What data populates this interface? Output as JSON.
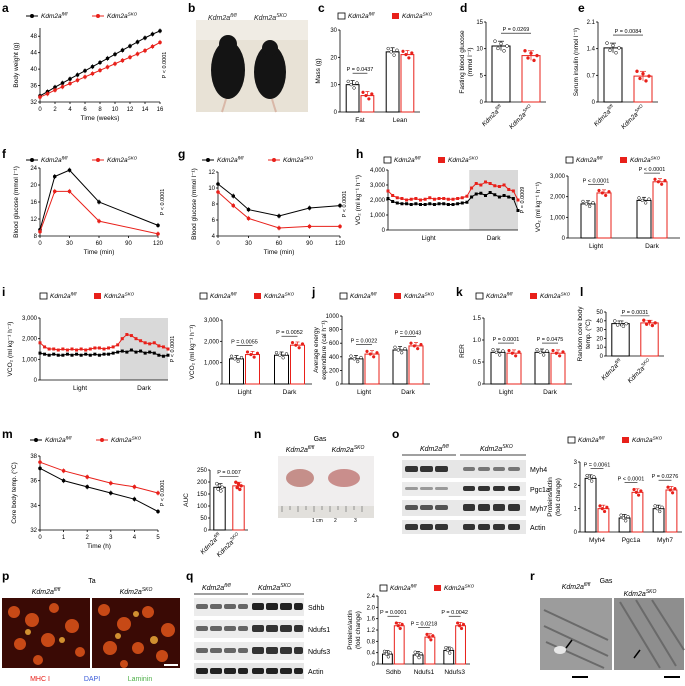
{
  "figure": {
    "colors": {
      "fl": "#000000",
      "sko": "#e8201a",
      "gray": "#d9d9d9"
    },
    "legend": {
      "fl": "Kdm2a",
      "fl_sup": "fl/fl",
      "sko": "Kdm2a",
      "sko_sup": "SKO"
    },
    "panel_labels": [
      "a",
      "b",
      "c",
      "d",
      "e",
      "f",
      "g",
      "h",
      "i",
      "j",
      "k",
      "l",
      "m",
      "n",
      "o",
      "p",
      "q",
      "r"
    ]
  },
  "chart_data": [
    {
      "id": "a",
      "type": "line",
      "xlabel": "Time (weeks)",
      "ylabel": "Body weight (g)",
      "ylim": [
        32,
        50
      ],
      "yticks": [
        32,
        36,
        40,
        44,
        48
      ],
      "xticks": [
        0,
        2,
        4,
        6,
        8,
        10,
        12,
        14,
        16
      ],
      "pvalue": "P < 0.0001",
      "x": [
        0,
        1,
        2,
        3,
        4,
        5,
        6,
        7,
        8,
        9,
        10,
        11,
        12,
        13,
        14,
        15,
        16
      ],
      "series": [
        {
          "name": "Kdm2a fl/fl",
          "values": [
            33.5,
            34.5,
            35.6,
            36.6,
            37.6,
            38.6,
            39.6,
            40.6,
            41.6,
            42.6,
            43.6,
            44.6,
            45.6,
            46.6,
            47.6,
            48.5,
            49.3
          ]
        },
        {
          "name": "Kdm2a SKO",
          "values": [
            33.2,
            34.0,
            34.9,
            35.7,
            36.5,
            37.3,
            38.1,
            38.9,
            39.7,
            40.5,
            41.3,
            42.1,
            42.9,
            43.7,
            44.5,
            45.5,
            46.5
          ]
        }
      ]
    },
    {
      "id": "c",
      "type": "bar",
      "ylabel": "Mass (g)",
      "ylim": [
        0,
        30
      ],
      "yticks": [
        0,
        10,
        20,
        30
      ],
      "categories": [
        "Fat",
        "Lean"
      ],
      "series": [
        {
          "name": "Kdm2a fl/fl",
          "values": [
            10,
            22
          ]
        },
        {
          "name": "Kdm2a SKO",
          "values": [
            6,
            21
          ]
        }
      ],
      "pvalues": [
        "P = 0.0437"
      ]
    },
    {
      "id": "d",
      "type": "bar",
      "ylabel": "Fasting blood glucose",
      "ylabel2": "(mmol l⁻¹)",
      "ylim": [
        0,
        15
      ],
      "yticks": [
        0,
        5,
        10,
        15
      ],
      "categories": [
        "Kdm2a fl/fl",
        "Kdm2a SKO"
      ],
      "values": [
        10.5,
        8.7
      ],
      "pvalues": [
        "P = 0.0269"
      ]
    },
    {
      "id": "e",
      "type": "bar",
      "ylabel": "Serum insulin (nmol l⁻¹)",
      "ylim": [
        0,
        2.1
      ],
      "yticks": [
        0,
        0.7,
        1.4,
        2.1
      ],
      "yticklabels": [
        "0",
        "0.7",
        "1.4",
        "2.1"
      ],
      "categories": [
        "Kdm2a fl/fl",
        "Kdm2a SKO"
      ],
      "values": [
        1.42,
        0.68
      ],
      "pvalues": [
        "P = 0.0084"
      ]
    },
    {
      "id": "f",
      "type": "line",
      "xlabel": "Time (min)",
      "ylabel": "Blood glucose (mmol l⁻¹)",
      "ylim": [
        8,
        24
      ],
      "yticks": [
        8,
        12,
        16,
        20,
        24
      ],
      "xticks": [
        0,
        30,
        60,
        90,
        120
      ],
      "pvalue": "P < 0.0001",
      "x": [
        0,
        15,
        30,
        60,
        120
      ],
      "series": [
        {
          "name": "Kdm2a fl/fl",
          "values": [
            9.5,
            22,
            23.5,
            16,
            10.5
          ]
        },
        {
          "name": "Kdm2a SKO",
          "values": [
            9,
            18.5,
            18.5,
            11.5,
            8.5
          ]
        }
      ]
    },
    {
      "id": "g",
      "type": "line",
      "xlabel": "Time (min)",
      "ylabel": "Blood glucose (mmol l⁻¹)",
      "ylim": [
        4,
        12
      ],
      "yticks": [
        4,
        6,
        8,
        10,
        12
      ],
      "xticks": [
        0,
        30,
        60,
        90,
        120
      ],
      "pvalue": "P < 0.0001",
      "x": [
        0,
        15,
        30,
        60,
        90,
        120
      ],
      "series": [
        {
          "name": "Kdm2a fl/fl",
          "values": [
            10.5,
            9,
            7.3,
            6.5,
            7.5,
            7.8
          ]
        },
        {
          "name": "Kdm2a SKO",
          "values": [
            9.5,
            7.8,
            6.2,
            5.0,
            5.2,
            5.2
          ]
        }
      ]
    },
    {
      "id": "h_line",
      "type": "line",
      "ylabel": "VO₂ (ml kg⁻¹ h⁻¹)",
      "ylim": [
        0,
        4000
      ],
      "yticks": [
        0,
        1000,
        2000,
        3000,
        4000
      ],
      "yticklabels": [
        "0",
        "1,000",
        "2,000",
        "3,000",
        "4,000"
      ],
      "xlabels": [
        "Light",
        "Dark"
      ],
      "pvalue": "P = 0.0009",
      "series": [
        {
          "name": "Kdm2a fl/fl",
          "values": [
            2100,
            1900,
            1800,
            1750,
            1750,
            1700,
            1750,
            1700,
            1700,
            1750,
            1700,
            1750,
            1750,
            1700,
            1700,
            1750,
            1800,
            1850,
            2200,
            2400,
            2450,
            2300,
            2500,
            2350,
            2200,
            2300,
            2200,
            2100,
            1300
          ]
        },
        {
          "name": "Kdm2a SKO",
          "values": [
            2600,
            2300,
            2150,
            2100,
            2000,
            2050,
            2100,
            2000,
            2050,
            2150,
            2050,
            2100,
            2100,
            2050,
            2050,
            2100,
            2150,
            2250,
            2800,
            3100,
            3000,
            3200,
            3100,
            2950,
            2900,
            3000,
            2700,
            2600,
            2000
          ]
        }
      ]
    },
    {
      "id": "h_bar",
      "type": "bar",
      "ylabel": "VO₂ (ml kg⁻¹ h⁻¹)",
      "ylim": [
        0,
        3000
      ],
      "yticks": [
        0,
        1000,
        2000,
        3000
      ],
      "yticklabels": [
        "0",
        "1,000",
        "2,000",
        "3,000"
      ],
      "categories": [
        "Light",
        "Dark"
      ],
      "series": [
        {
          "name": "Kdm2a fl/fl",
          "values": [
            1650,
            1820
          ]
        },
        {
          "name": "Kdm2a SKO",
          "values": [
            2180,
            2720
          ]
        }
      ],
      "pvalues": [
        "P < 0.0001",
        "P < 0.0001"
      ]
    },
    {
      "id": "i_line",
      "type": "line",
      "ylabel": "VCO₂ (ml kg⁻¹ h⁻¹)",
      "ylim": [
        0,
        3000
      ],
      "yticks": [
        0,
        1000,
        2000,
        3000
      ],
      "yticklabels": [
        "0",
        "1,000",
        "2,000",
        "3,000"
      ],
      "xlabels": [
        "Light",
        "Dark"
      ],
      "pvalue": "P < 0.0001",
      "series": [
        {
          "name": "Kdm2a fl/fl",
          "values": [
            1300,
            1250,
            1200,
            1250,
            1200,
            1200,
            1250,
            1200,
            1250,
            1200,
            1250,
            1200,
            1250,
            1200,
            1250,
            1250,
            1300,
            1350,
            1400,
            1350,
            1450,
            1350,
            1400,
            1300,
            1350,
            1300,
            1200,
            1150,
            1200
          ]
        },
        {
          "name": "Kdm2a SKO",
          "values": [
            1800,
            1600,
            1500,
            1500,
            1450,
            1500,
            1450,
            1500,
            1450,
            1500,
            1450,
            1500,
            1550,
            1550,
            1500,
            1550,
            1600,
            1700,
            2000,
            2200,
            2150,
            2000,
            1900,
            1800,
            1750,
            1800,
            1650,
            1600,
            1500
          ]
        }
      ]
    },
    {
      "id": "i_bar",
      "type": "bar",
      "ylabel": "VCO₂ (ml kg⁻¹ h⁻¹)",
      "ylim": [
        0,
        3000
      ],
      "yticks": [
        0,
        1000,
        2000,
        3000
      ],
      "yticklabels": [
        "0",
        "1,000",
        "2,000",
        "3,000"
      ],
      "categories": [
        "Light",
        "Dark"
      ],
      "series": [
        {
          "name": "Kdm2a fl/fl",
          "values": [
            1180,
            1350
          ]
        },
        {
          "name": "Kdm2a SKO",
          "values": [
            1380,
            1820
          ]
        }
      ],
      "pvalues": [
        "P = 0.0055",
        "P = 0.0052"
      ]
    },
    {
      "id": "j",
      "type": "bar",
      "ylabel": "Average energy",
      "ylabel2": "expenditure (cal h⁻¹)",
      "ylim": [
        0,
        1000
      ],
      "yticks": [
        0,
        200,
        400,
        600,
        800,
        1000
      ],
      "categories": [
        "Light",
        "Dark"
      ],
      "series": [
        {
          "name": "Kdm2a fl/fl",
          "values": [
            370,
            500
          ]
        },
        {
          "name": "Kdm2a SKO",
          "values": [
            440,
            560
          ]
        }
      ],
      "pvalues": [
        "P = 0.0022",
        "P = 0.0043"
      ]
    },
    {
      "id": "k",
      "type": "bar",
      "ylabel": "RER",
      "ylim": [
        0,
        1.5
      ],
      "yticks": [
        0,
        0.5,
        1.0,
        1.5
      ],
      "yticklabels": [
        "0",
        "0.5",
        "1.0",
        "1.5"
      ],
      "categories": [
        "Light",
        "Dark"
      ],
      "series": [
        {
          "name": "Kdm2a fl/fl",
          "values": [
            0.72,
            0.72
          ]
        },
        {
          "name": "Kdm2a SKO",
          "values": [
            0.7,
            0.7
          ]
        }
      ],
      "pvalues": [
        "P = 0.0001",
        "P = 0.0475"
      ]
    },
    {
      "id": "l",
      "type": "bar",
      "ylabel": "Random core body",
      "ylabel2": "temp. (°C)",
      "ylim": [
        0,
        50
      ],
      "yticks": [
        0,
        10,
        20,
        30,
        40,
        50
      ],
      "categories": [
        "Kdm2a fl/fl",
        "Kdm2a SKO"
      ],
      "values": [
        36.8,
        37.6
      ],
      "pvalues": [
        "P = 0.0031"
      ]
    },
    {
      "id": "m",
      "type": "line",
      "xlabel": "Time (h)",
      "ylabel": "Core body temp. (°C)",
      "ylim": [
        32,
        38
      ],
      "yticks": [
        32,
        34,
        36,
        38
      ],
      "xticks": [
        0,
        1,
        2,
        3,
        4,
        5
      ],
      "pvalue": "P < 0.0001",
      "x": [
        0,
        1,
        2,
        3,
        4,
        5
      ],
      "series": [
        {
          "name": "Kdm2a fl/fl",
          "values": [
            37.0,
            36.0,
            35.5,
            35.0,
            34.5,
            33.5
          ]
        },
        {
          "name": "Kdm2a SKO",
          "values": [
            37.5,
            36.8,
            36.3,
            35.8,
            35.5,
            35.0
          ]
        }
      ]
    },
    {
      "id": "m_auc",
      "type": "bar",
      "ylabel": "AUC",
      "ylim": [
        0,
        250
      ],
      "yticks": [
        0,
        50,
        100,
        150,
        200,
        250
      ],
      "categories": [
        "Kdm2a fl/fl",
        "Kdm2a SKO"
      ],
      "values": [
        178,
        184
      ],
      "pvalues": [
        "P = 0.007"
      ]
    },
    {
      "id": "o",
      "type": "bar",
      "ylabel": "Proteins/actin",
      "ylabel2": "(fold change)",
      "ylim": [
        0,
        3
      ],
      "yticks": [
        0,
        1,
        2,
        3
      ],
      "categories": [
        "Myh4",
        "Pgc1a",
        "Myh7"
      ],
      "series": [
        {
          "name": "Kdm2a fl/fl",
          "values": [
            2.3,
            0.6,
            1.0
          ]
        },
        {
          "name": "Kdm2a SKO",
          "values": [
            1.0,
            1.7,
            1.8
          ]
        }
      ],
      "pvalues": [
        "P = 0.0061",
        "P < 0.0001",
        "P = 0.0276"
      ]
    },
    {
      "id": "q",
      "type": "bar",
      "ylabel": "Proteins/actin",
      "ylabel2": "(fold change)",
      "ylim": [
        0,
        2.4
      ],
      "yticks": [
        0,
        0.4,
        0.8,
        1.2,
        1.6,
        2.0,
        2.4
      ],
      "yticklabels": [
        "0",
        "0.4",
        "0.8",
        "1.2",
        "1.6",
        "2.0",
        "2.4"
      ],
      "categories": [
        "Sdhb",
        "Ndufs1",
        "Ndufs3"
      ],
      "series": [
        {
          "name": "Kdm2a fl/fl",
          "values": [
            0.35,
            0.32,
            0.48
          ]
        },
        {
          "name": "Kdm2a SKO",
          "values": [
            1.35,
            0.95,
            1.35
          ]
        }
      ],
      "pvalues": [
        "P = 0.0001",
        "P = 0.0218",
        "P = 0.0042"
      ]
    }
  ],
  "panels": {
    "b": {
      "fl": "Kdm2a",
      "fl_sup": "fl/fl",
      "sko": "Kdm2a",
      "sko_sup": "SKO"
    },
    "h": {
      "light": "Light",
      "dark": "Dark"
    },
    "i": {
      "light": "Light",
      "dark": "Dark"
    },
    "n": {
      "title": "Gas",
      "fl": "Kdm2a",
      "fl_sup": "fl/fl",
      "sko": "Kdm2a",
      "sko_sup": "SKO",
      "ruler": [
        "1 cm",
        "2",
        "3"
      ]
    },
    "o": {
      "fl": "Kdm2a",
      "fl_sup": "fl/fl",
      "sko": "Kdm2a",
      "sko_sup": "SKO",
      "bands": [
        "Myh4",
        "Pgc1a",
        "Myh7",
        "Actin"
      ]
    },
    "p": {
      "title": "Ta",
      "fl": "Kdm2a",
      "fl_sup": "fl/fl",
      "sko": "Kdm2a",
      "sko_sup": "SKO",
      "stains": [
        "MHC I",
        "DAPI",
        "Laminin"
      ]
    },
    "q": {
      "fl": "Kdm2a",
      "fl_sup": "fl/fl",
      "sko": "Kdm2a",
      "sko_sup": "SKO",
      "bands": [
        "Sdhb",
        "Ndufs1",
        "Ndufs3",
        "Actin"
      ]
    },
    "r": {
      "title": "Gas",
      "fl": "Kdm2a",
      "fl_sup": "fl/fl",
      "sko": "Kdm2a",
      "sko_sup": "SKO"
    }
  }
}
